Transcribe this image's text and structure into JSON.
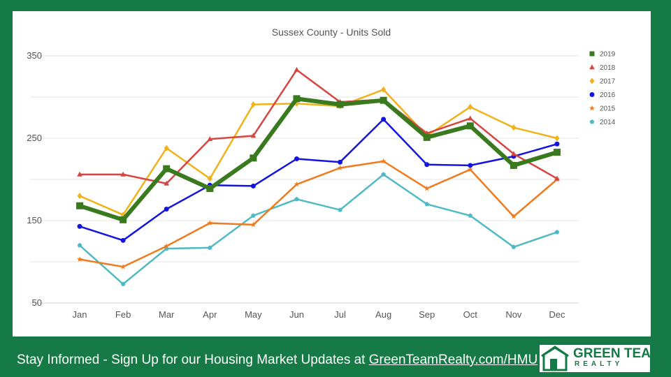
{
  "chart_data": {
    "type": "line",
    "title": "Sussex County - Units Sold",
    "categories": [
      "Jan",
      "Feb",
      "Mar",
      "Apr",
      "May",
      "Jun",
      "Jul",
      "Aug",
      "Sep",
      "Oct",
      "Nov",
      "Dec"
    ],
    "ylim": [
      50,
      350
    ],
    "yticks": [
      50,
      150,
      250,
      350
    ],
    "grid": true,
    "legend_position": "right",
    "series": [
      {
        "name": "2019",
        "color": "#3a7a1e",
        "marker": "square",
        "values": [
          168,
          151,
          213,
          189,
          226,
          298,
          291,
          296,
          251,
          265,
          217,
          233
        ]
      },
      {
        "name": "2018",
        "color": "#d64541",
        "marker": "triangle",
        "values": [
          206,
          206,
          195,
          249,
          253,
          333,
          294,
          297,
          256,
          274,
          231,
          201
        ]
      },
      {
        "name": "2017",
        "color": "#f0b21a",
        "marker": "diamond",
        "values": [
          180,
          157,
          238,
          201,
          291,
          292,
          289,
          309,
          253,
          288,
          263,
          250
        ]
      },
      {
        "name": "2016",
        "color": "#1414e0",
        "marker": "circle",
        "values": [
          143,
          126,
          164,
          193,
          192,
          225,
          221,
          273,
          218,
          217,
          228,
          243
        ]
      },
      {
        "name": "2015",
        "color": "#f07a1e",
        "marker": "star",
        "values": [
          103,
          94,
          119,
          147,
          145,
          194,
          214,
          222,
          189,
          212,
          155,
          200
        ]
      },
      {
        "name": "2014",
        "color": "#4fbac4",
        "marker": "pentagon",
        "values": [
          120,
          73,
          116,
          117,
          156,
          176,
          163,
          206,
          170,
          156,
          118,
          136
        ]
      }
    ]
  },
  "footer": {
    "prefix": "Stay Informed - Sign Up for our Housing Market Updates at ",
    "link": "GreenTeamRealty.com/HMU"
  },
  "logo": {
    "line1": "GREEN TEAM",
    "line2": "REALTY"
  },
  "colors": {
    "brand_green": "#157a45"
  }
}
